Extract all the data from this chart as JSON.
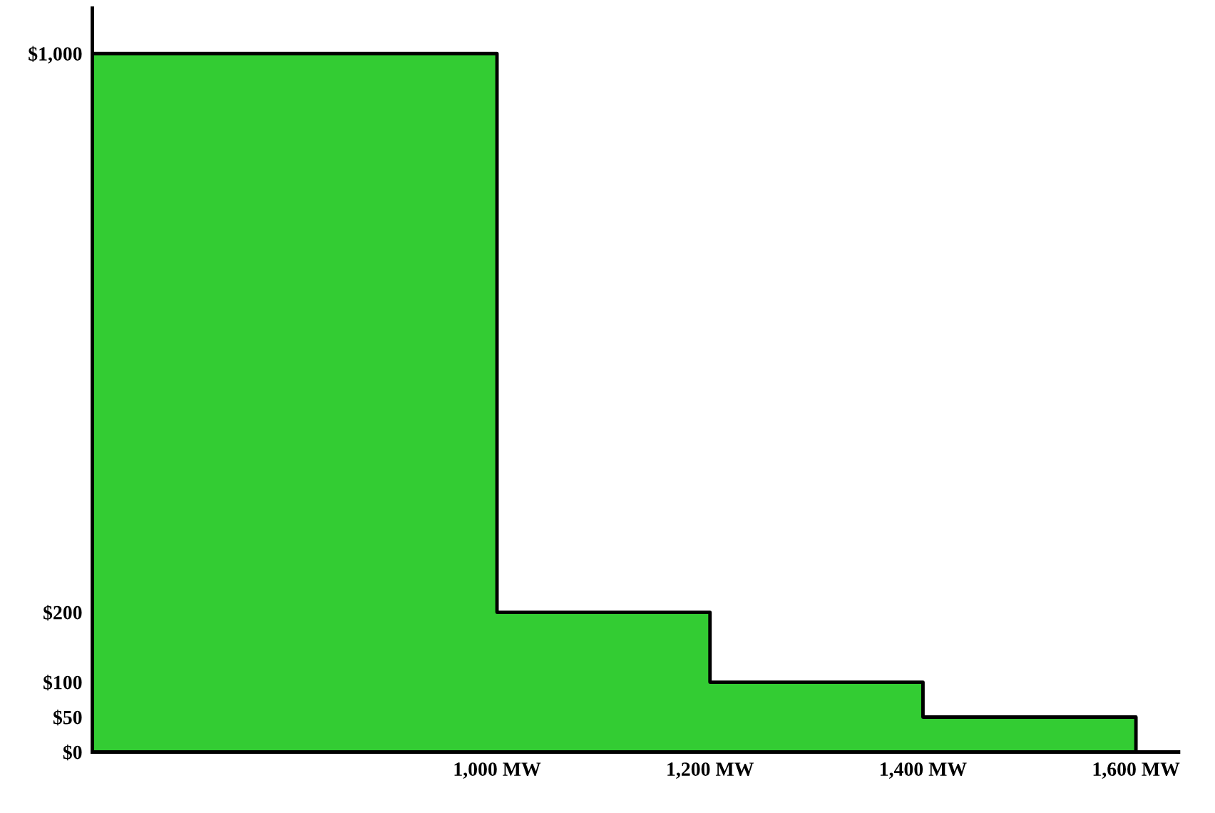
{
  "chart_data": {
    "type": "histogram",
    "bins": [
      620,
      1000,
      1200,
      1400,
      1600
    ],
    "values": [
      1000,
      200,
      100,
      50
    ],
    "color": "#33cc33",
    "xlim": [
      620,
      1640
    ],
    "ylim": [
      0,
      1065
    ],
    "xticks": [
      {
        "value": 1000,
        "label": "1,000 MW"
      },
      {
        "value": 1200,
        "label": "1,200 MW"
      },
      {
        "value": 1400,
        "label": "1,400 MW"
      },
      {
        "value": 1600,
        "label": "1,600 MW"
      }
    ],
    "yticks": [
      {
        "value": 0,
        "label": "$0"
      },
      {
        "value": 50,
        "label": "$50"
      },
      {
        "value": 100,
        "label": "$100"
      },
      {
        "value": 200,
        "label": "$200"
      },
      {
        "value": 1000,
        "label": "$1,000"
      }
    ],
    "grid": false,
    "legend": false
  }
}
